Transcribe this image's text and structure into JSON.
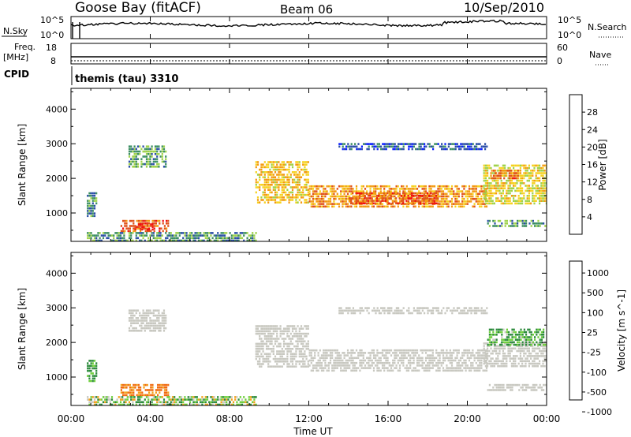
{
  "header": {
    "station": "Goose Bay (fitACF)",
    "beam": "Beam 06",
    "date": "10/Sep/2010"
  },
  "noise_panel": {
    "left_label": "N.Sky",
    "right_label": "N.Search",
    "left_ticks": [
      "10^5",
      "10^0"
    ],
    "right_ticks": [
      "10^5",
      "10^0"
    ]
  },
  "freq_panel": {
    "left_label_line1": "Freq.",
    "left_label_line2": "[MHz]",
    "right_label": "Nave",
    "left_ticks": [
      "18",
      "8"
    ],
    "right_ticks": [
      "60",
      "0"
    ]
  },
  "cpid": {
    "label": "CPID",
    "value": "themis (tau) 3310"
  },
  "power_colorbar": {
    "title": "Power [dB]",
    "ticks": [
      "4",
      "8",
      "12",
      "16",
      "20",
      "24",
      "28"
    ],
    "colors": [
      "#0a1fff",
      "#2c4fa8",
      "#3d8f63",
      "#9fd24a",
      "#f6d21f",
      "#f39a12",
      "#e0521a",
      "#f01010"
    ]
  },
  "velocity_colorbar": {
    "title": "Velocity [m s^-1]",
    "ticks": [
      "1000",
      "500",
      "100",
      "25",
      "-25",
      "-100",
      "-500",
      "-1000"
    ],
    "colors": [
      "#1f3fa8",
      "#2e8c3e",
      "#6fcf3c",
      "#c8c8c0",
      "#f2a21c",
      "#f06a10",
      "#e8301a"
    ]
  },
  "axes": {
    "y_label": "Slant Range [km]",
    "y_ticks": [
      "1000",
      "2000",
      "3000",
      "4000"
    ],
    "x_label": "Time UT",
    "x_ticks": [
      "00:00",
      "04:00",
      "08:00",
      "12:00",
      "16:00",
      "20:00",
      "00:00"
    ]
  },
  "chart_data": [
    {
      "type": "heatmap",
      "title": "Power [dB]",
      "xlabel": "Time UT",
      "ylabel": "Slant Range [km]",
      "xlim": [
        0,
        24
      ],
      "ylim": [
        180,
        4600
      ],
      "zlim": [
        0,
        30
      ],
      "regions": [
        {
          "t0": 0.8,
          "t1": 1.3,
          "r0": 900,
          "r1": 1600,
          "v": 9
        },
        {
          "t0": 2.9,
          "t1": 4.8,
          "r0": 2300,
          "r1": 2950,
          "v": 11
        },
        {
          "t0": 2.5,
          "t1": 4.9,
          "r0": 500,
          "r1": 800,
          "v": 25
        },
        {
          "t0": 3.2,
          "t1": 4.1,
          "r0": 520,
          "r1": 700,
          "v": 29
        },
        {
          "t0": 0.8,
          "t1": 9.3,
          "r0": 200,
          "r1": 450,
          "v": 10
        },
        {
          "t0": 9.3,
          "t1": 12.0,
          "r0": 1300,
          "r1": 2500,
          "v": 19
        },
        {
          "t0": 12.0,
          "t1": 21.0,
          "r0": 1200,
          "r1": 1800,
          "v": 22
        },
        {
          "t0": 14.0,
          "t1": 18.5,
          "r0": 1300,
          "r1": 1600,
          "v": 26
        },
        {
          "t0": 20.8,
          "t1": 24.0,
          "r0": 1300,
          "r1": 2400,
          "v": 17
        },
        {
          "t0": 21.2,
          "t1": 22.6,
          "r0": 2000,
          "r1": 2250,
          "v": 24
        },
        {
          "t0": 21.0,
          "t1": 24.0,
          "r0": 600,
          "r1": 800,
          "v": 11
        },
        {
          "t0": 13.5,
          "t1": 21.0,
          "r0": 2850,
          "r1": 3020,
          "v": 6
        }
      ]
    },
    {
      "type": "heatmap",
      "title": "Velocity [m s^-1]",
      "xlabel": "Time UT",
      "ylabel": "Slant Range [km]",
      "xlim": [
        0,
        24
      ],
      "ylim": [
        180,
        4600
      ],
      "zlim": [
        -1000,
        1000
      ],
      "regions": [
        {
          "t0": 0.8,
          "t1": 1.3,
          "r0": 900,
          "r1": 1500,
          "v": 150
        },
        {
          "t0": 2.9,
          "t1": 4.8,
          "r0": 2300,
          "r1": 2950,
          "v": 0
        },
        {
          "t0": 2.5,
          "t1": 4.9,
          "r0": 500,
          "r1": 800,
          "v": -150
        },
        {
          "t0": 0.8,
          "t1": 9.3,
          "r0": 200,
          "r1": 450,
          "v": 60
        },
        {
          "t0": 9.3,
          "t1": 12.0,
          "r0": 1300,
          "r1": 2500,
          "v": 0
        },
        {
          "t0": 12.0,
          "t1": 21.0,
          "r0": 1200,
          "r1": 1800,
          "v": 0
        },
        {
          "t0": 20.8,
          "t1": 24.0,
          "r0": 1300,
          "r1": 2000,
          "v": 0
        },
        {
          "t0": 21.0,
          "t1": 24.0,
          "r0": 1900,
          "r1": 2400,
          "v": 120
        },
        {
          "t0": 21.0,
          "t1": 24.0,
          "r0": 600,
          "r1": 800,
          "v": 0
        },
        {
          "t0": 13.5,
          "t1": 21.0,
          "r0": 2850,
          "r1": 3020,
          "v": 0
        }
      ]
    }
  ]
}
